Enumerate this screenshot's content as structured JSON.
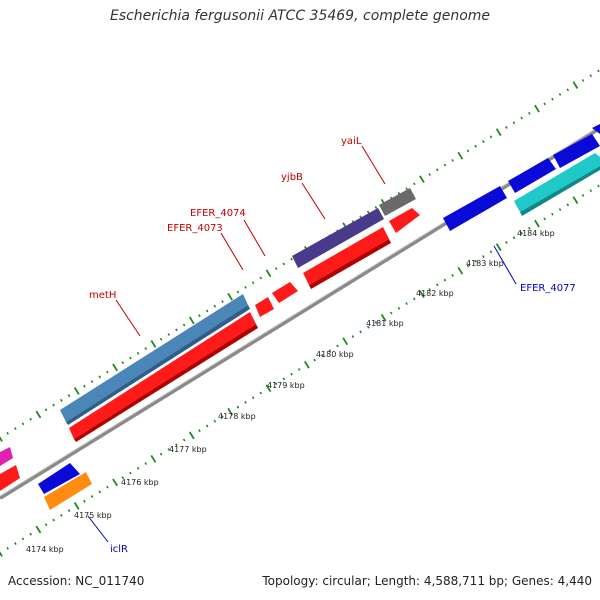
{
  "header": {
    "title": "Escherichia fergusonii ATCC 35469, complete genome"
  },
  "footer": {
    "accession": "Accession: NC_011740",
    "topology": "Topology: circular; Length: 4,588,711 bp; Genes: 4,440"
  },
  "colors": {
    "backbone": "#8a8a8a",
    "ticks": "#1f8a1f",
    "forward_label": "#c00000",
    "reverse_label": "#0000c0",
    "gene_red": "#ff1a1a",
    "gene_steelblue": "#4a86b8",
    "gene_purple": "#4a3a8c",
    "gene_gray": "#6a6a6a",
    "gene_blue": "#0a0ad8",
    "gene_cyan": "#20c8c8",
    "gene_orange": "#ff8c10",
    "gene_magenta": "#e020b0"
  },
  "scale": {
    "kbp_labels": [
      "4174 kbp",
      "4175 kbp",
      "4176 kbp",
      "4177 kbp",
      "4178 kbp",
      "4179 kbp",
      "4180 kbp",
      "4181 kbp",
      "4182 kbp",
      "4183 kbp",
      "4184 kbp"
    ]
  },
  "gene_labels": {
    "forward": [
      "metH",
      "EFER_4073",
      "EFER_4074",
      "yjbB",
      "yaiL"
    ],
    "reverse": [
      "iclR",
      "EFER_4077"
    ]
  }
}
